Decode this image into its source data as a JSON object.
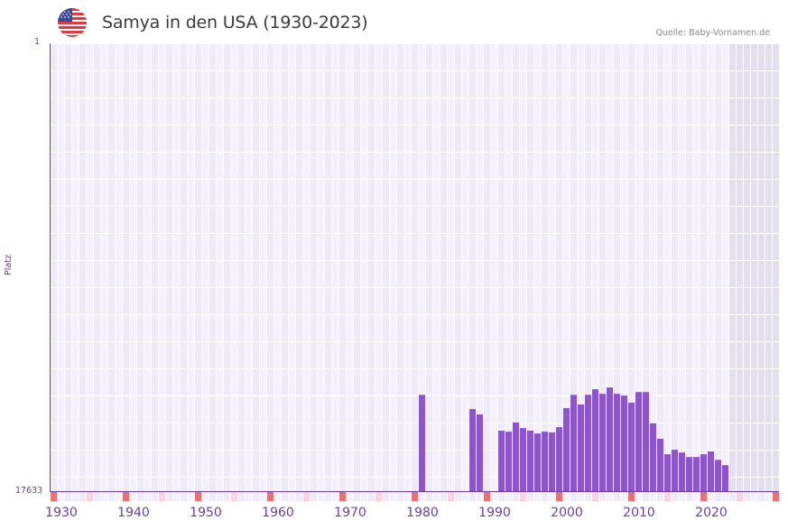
{
  "header": {
    "title": "Samya in den USA (1930-2023)",
    "source": "Quelle: Baby-Vornamen.de",
    "flag_icon": "usa-flag-icon"
  },
  "axes": {
    "y_title": "Platz",
    "y_top_label": "1",
    "y_bottom_label": "17633",
    "x_labels": [
      "1930",
      "1940",
      "1950",
      "1960",
      "1970",
      "1980",
      "1990",
      "2000",
      "2010",
      "2020"
    ]
  },
  "colors": {
    "bar": "#8c55c8",
    "axis": "#6a3fa0",
    "plot_bg": "#efeaf8",
    "plot_bg_alt": "#f4f1fb",
    "shaded_bg": "#e3dfed",
    "marker_strong": "#e57373",
    "marker_light": "#f6d5df"
  },
  "chart_data": {
    "type": "bar",
    "title": "Samya in den USA (1930-2023)",
    "xlabel": "",
    "ylabel": "Platz",
    "y_inverted": true,
    "ylim": [
      1,
      17633
    ],
    "x_range": [
      1929,
      2029
    ],
    "shaded_from_year": 2023,
    "grid": true,
    "categories": [
      1980,
      1987,
      1988,
      1991,
      1992,
      1993,
      1994,
      1995,
      1996,
      1997,
      1998,
      1999,
      2000,
      2001,
      2002,
      2003,
      2004,
      2005,
      2006,
      2007,
      2008,
      2009,
      2010,
      2011,
      2012,
      2013,
      2014,
      2015,
      2016,
      2017,
      2018,
      2019,
      2020,
      2021,
      2022
    ],
    "values": [
      13840,
      14400,
      14610,
      15250,
      15290,
      14930,
      15150,
      15250,
      15360,
      15290,
      15320,
      15110,
      14360,
      13840,
      14220,
      13840,
      13620,
      13800,
      13550,
      13800,
      13870,
      14150,
      13730,
      13730,
      14960,
      15570,
      16180,
      16000,
      16110,
      16290,
      16290,
      16180,
      16070,
      16400,
      16610
    ]
  }
}
